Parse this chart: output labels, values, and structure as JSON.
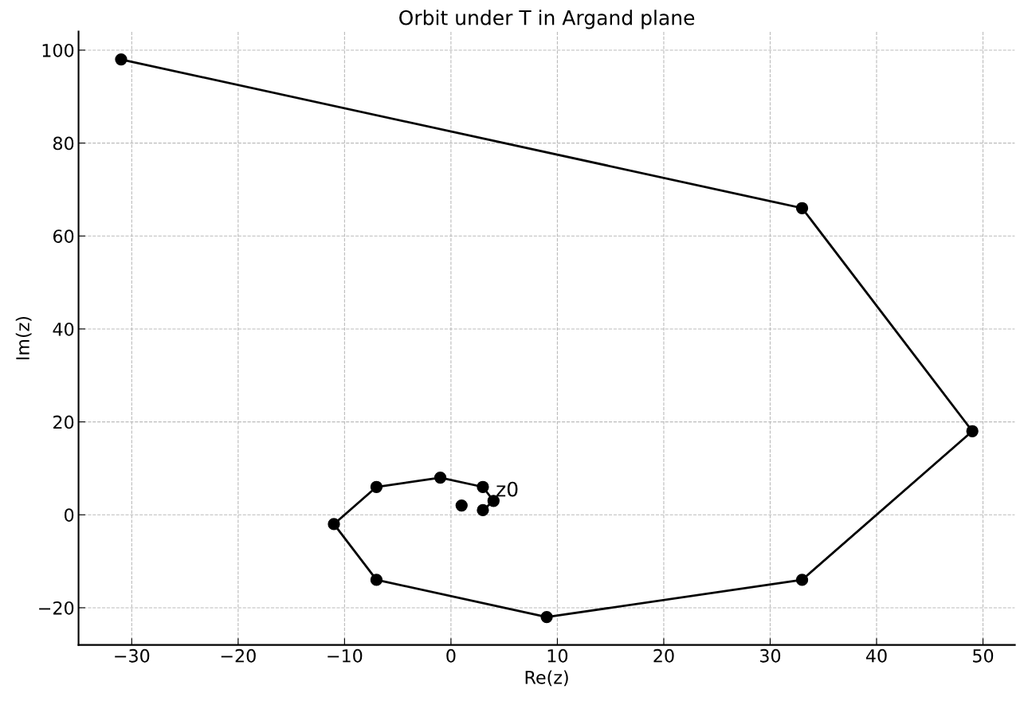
{
  "chart_data": {
    "type": "line",
    "title": "Orbit under T in Argand plane",
    "xlabel": "Re(z)",
    "ylabel": "Im(z)",
    "series": [
      {
        "color": "#000000",
        "x": [
          3,
          4,
          3,
          -1,
          -7,
          -11,
          -7,
          9,
          33,
          49,
          33,
          -31
        ],
        "values": [
          1,
          3,
          6,
          8,
          6,
          -2,
          -14,
          -22,
          -14,
          18,
          66,
          98
        ]
      },
      {
        "type": "scatter",
        "color": "#000000",
        "x": [
          1
        ],
        "values": [
          2
        ]
      }
    ],
    "marker": "circle",
    "line_style": "solid",
    "grid": true,
    "legend": false,
    "xlim": [
      -35,
      53
    ],
    "ylim": [
      -28,
      104
    ],
    "xticks": [
      {
        "value": -30,
        "label": "−30"
      },
      {
        "value": -20,
        "label": "−20"
      },
      {
        "value": -10,
        "label": "−10"
      },
      0,
      10,
      20,
      30,
      40,
      50
    ],
    "yticks": [
      {
        "value": -20,
        "label": "−20"
      },
      0,
      20,
      40,
      60,
      80,
      100
    ],
    "annotations": [
      {
        "text": "z0",
        "x": 4,
        "y": 3
      }
    ]
  }
}
